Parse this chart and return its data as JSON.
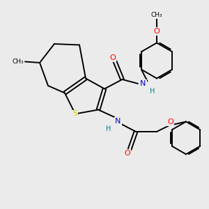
{
  "background_color": "#ebebeb",
  "bond_color": "#000000",
  "S_color": "#cccc00",
  "N_color": "#0000cc",
  "O_color": "#ff0000",
  "H_color": "#008080",
  "C_color": "#000000",
  "figsize": [
    3.0,
    3.0
  ],
  "dpi": 100,
  "xlim": [
    0,
    10
  ],
  "ylim": [
    0,
    10
  ]
}
